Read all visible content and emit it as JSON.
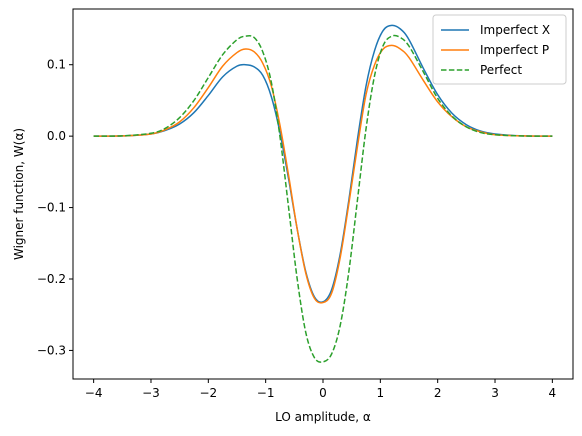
{
  "chart_data": {
    "type": "line",
    "xlabel": "LO amplitude, α",
    "ylabel": "Wigner function, W(α)",
    "xlim": [
      -4.36,
      4.36
    ],
    "ylim": [
      -0.34,
      0.178
    ],
    "xticks": [
      -4,
      -3,
      -2,
      -1,
      0,
      1,
      2,
      3,
      4
    ],
    "xtick_labels": [
      "−4",
      "−3",
      "−2",
      "−1",
      "0",
      "1",
      "2",
      "3",
      "4"
    ],
    "yticks": [
      -0.3,
      -0.2,
      -0.1,
      0.0,
      0.1
    ],
    "ytick_labels": [
      "−0.3",
      "−0.2",
      "−0.1",
      "0.0",
      "0.1"
    ],
    "grid": false,
    "legend_position": "upper right",
    "x": [
      -4.0,
      -3.5,
      -3.0,
      -2.75,
      -2.5,
      -2.25,
      -2.0,
      -1.75,
      -1.5,
      -1.35,
      -1.2,
      -1.05,
      -0.9,
      -0.75,
      -0.6,
      -0.45,
      -0.3,
      -0.15,
      0.0,
      0.15,
      0.3,
      0.45,
      0.6,
      0.75,
      0.9,
      1.05,
      1.2,
      1.35,
      1.5,
      1.75,
      2.0,
      2.25,
      2.5,
      2.75,
      3.0,
      3.5,
      4.0
    ],
    "series": [
      {
        "name": "Imperfect X",
        "color": "#1f77b4",
        "style": "solid",
        "values": [
          0.0,
          0.0003,
          0.003,
          0.008,
          0.017,
          0.033,
          0.057,
          0.083,
          0.098,
          0.1,
          0.097,
          0.085,
          0.055,
          0.005,
          -0.06,
          -0.13,
          -0.19,
          -0.225,
          -0.232,
          -0.215,
          -0.165,
          -0.09,
          -0.005,
          0.07,
          0.12,
          0.148,
          0.155,
          0.15,
          0.135,
          0.095,
          0.058,
          0.032,
          0.016,
          0.007,
          0.003,
          0.0003,
          0.0
        ]
      },
      {
        "name": "Imperfect P",
        "color": "#ff7f0e",
        "style": "solid",
        "values": [
          0.0,
          0.0003,
          0.003,
          0.009,
          0.02,
          0.04,
          0.068,
          0.098,
          0.117,
          0.122,
          0.118,
          0.102,
          0.07,
          0.015,
          -0.055,
          -0.13,
          -0.192,
          -0.227,
          -0.233,
          -0.22,
          -0.17,
          -0.095,
          -0.015,
          0.058,
          0.1,
          0.122,
          0.127,
          0.122,
          0.11,
          0.078,
          0.048,
          0.027,
          0.013,
          0.006,
          0.002,
          0.0003,
          0.0
        ]
      },
      {
        "name": "Perfect",
        "color": "#2ca02c",
        "style": "dashed",
        "values": [
          0.0,
          0.0004,
          0.004,
          0.011,
          0.026,
          0.05,
          0.082,
          0.114,
          0.135,
          0.14,
          0.138,
          0.118,
          0.075,
          -0.001,
          -0.1,
          -0.2,
          -0.275,
          -0.31,
          -0.316,
          -0.305,
          -0.265,
          -0.19,
          -0.09,
          0.01,
          0.085,
          0.127,
          0.14,
          0.138,
          0.126,
          0.09,
          0.053,
          0.028,
          0.013,
          0.005,
          0.002,
          0.0002,
          0.0
        ]
      }
    ]
  }
}
